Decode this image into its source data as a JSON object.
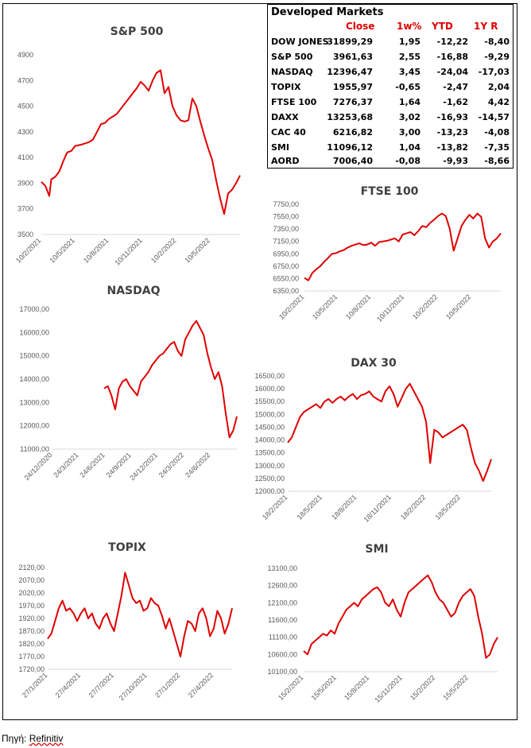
{
  "markets_table": {
    "title": "Developed Markets",
    "headers": {
      "close": "Close",
      "w1": "1w%",
      "ytd": "YTD",
      "y1": "1Y R"
    },
    "rows": [
      {
        "name": "DOW JONES",
        "close": "31899,29",
        "w1": "1,95",
        "ytd": "-12,22",
        "y1": "-8,40"
      },
      {
        "name": "S&P 500",
        "close": "3961,63",
        "w1": "2,55",
        "ytd": "-16,88",
        "y1": "-9,29"
      },
      {
        "name": "NASDAQ",
        "close": "12396,47",
        "w1": "3,45",
        "ytd": "-24,04",
        "y1": "-17,03"
      },
      {
        "name": "TOPIX",
        "close": "1955,97",
        "w1": "-0,65",
        "ytd": "-2,47",
        "y1": "2,04"
      },
      {
        "name": "FTSE 100",
        "close": "7276,37",
        "w1": "1,64",
        "ytd": "-1,62",
        "y1": "4,42"
      },
      {
        "name": "DAXX",
        "close": "13253,68",
        "w1": "3,02",
        "ytd": "-16,93",
        "y1": "-14,57"
      },
      {
        "name": "CAC 40",
        "close": "6216,82",
        "w1": "3,00",
        "ytd": "-13,23",
        "y1": "-4,08"
      },
      {
        "name": "SMI",
        "close": "11096,12",
        "w1": "1,04",
        "ytd": "-13,82",
        "y1": "-7,35"
      },
      {
        "name": "AORD",
        "close": "7006,40",
        "w1": "-0,08",
        "ytd": "-9,93",
        "y1": "-8,66"
      }
    ]
  },
  "source": {
    "label": "Πηγή:",
    "name": "Refinitiv"
  },
  "colors": {
    "line": "#e00000",
    "header_text": "#e00000",
    "axis_text": "#595959",
    "title_text": "#404040"
  },
  "chart_data": [
    {
      "id": "sp500",
      "type": "line",
      "title": "S&P 500",
      "ylim": [
        3500,
        4900
      ],
      "yticks": [
        "3500",
        "3700",
        "3900",
        "4100",
        "4300",
        "4500",
        "4700",
        "4900"
      ],
      "xticks": [
        "10/2/2021",
        "10/5/2021",
        "10/8/2021",
        "10/11/2021",
        "10/2/2022",
        "10/5/2022"
      ],
      "x_domain": [
        0,
        100
      ],
      "xtick_positions": [
        0,
        17,
        34,
        51,
        68,
        85
      ],
      "series": [
        {
          "x": [
            0,
            2,
            4,
            5,
            7,
            9,
            11,
            13,
            15,
            17,
            20,
            22,
            24,
            26,
            28,
            30,
            32,
            34,
            36,
            38,
            40,
            42,
            44,
            46,
            48,
            50,
            52,
            54,
            56,
            58,
            60,
            62,
            64,
            66,
            68,
            70,
            72,
            74,
            76,
            78,
            80,
            82,
            84,
            86,
            88,
            90,
            92,
            94,
            96,
            98,
            100
          ],
          "values": [
            3910,
            3880,
            3800,
            3930,
            3950,
            3990,
            4070,
            4140,
            4150,
            4190,
            4200,
            4210,
            4220,
            4240,
            4300,
            4360,
            4370,
            4400,
            4420,
            4440,
            4480,
            4520,
            4560,
            4600,
            4640,
            4690,
            4660,
            4620,
            4700,
            4760,
            4780,
            4600,
            4650,
            4500,
            4430,
            4390,
            4380,
            4390,
            4560,
            4500,
            4380,
            4270,
            4170,
            4080,
            3920,
            3780,
            3660,
            3820,
            3850,
            3900,
            3960
          ]
        }
      ]
    },
    {
      "id": "ftse",
      "type": "line",
      "title": "FTSE 100",
      "ylim": [
        6350,
        7750
      ],
      "yticks": [
        "6350,00",
        "6550,00",
        "6750,00",
        "6950,00",
        "7150,00",
        "7350,00",
        "7550,00",
        "7750,00"
      ],
      "xticks": [
        "10/2/2021",
        "10/5/2021",
        "10/8/2021",
        "10/11/2021",
        "10/2/2022",
        "10/5/2022"
      ],
      "x_domain": [
        0,
        100
      ],
      "xtick_positions": [
        0,
        17,
        34,
        51,
        68,
        85
      ],
      "series": [
        {
          "x": [
            0,
            2,
            4,
            6,
            8,
            10,
            12,
            14,
            16,
            18,
            20,
            22,
            24,
            26,
            28,
            30,
            32,
            34,
            36,
            38,
            40,
            42,
            44,
            46,
            48,
            50,
            52,
            54,
            56,
            58,
            60,
            62,
            64,
            66,
            68,
            70,
            72,
            74,
            76,
            78,
            80,
            82,
            84,
            86,
            88,
            90,
            92,
            94,
            96,
            98,
            100
          ],
          "values": [
            6560,
            6520,
            6640,
            6700,
            6750,
            6820,
            6880,
            6950,
            6960,
            6990,
            7010,
            7050,
            7080,
            7100,
            7120,
            7090,
            7100,
            7130,
            7080,
            7140,
            7150,
            7160,
            7180,
            7200,
            7150,
            7260,
            7280,
            7300,
            7250,
            7320,
            7400,
            7380,
            7450,
            7500,
            7560,
            7600,
            7560,
            7350,
            7000,
            7200,
            7400,
            7500,
            7580,
            7520,
            7600,
            7550,
            7200,
            7050,
            7150,
            7200,
            7280
          ]
        }
      ]
    },
    {
      "id": "nasdaq",
      "type": "line",
      "title": "NASDAQ",
      "ylim": [
        11000,
        17000
      ],
      "yticks": [
        "11000,00",
        "12000,00",
        "13000,00",
        "14000,00",
        "15000,00",
        "16000,00",
        "17000,00"
      ],
      "xticks": [
        "24/12/2020",
        "24/3/2021",
        "24/6/2021",
        "24/9/2021",
        "24/12/2021",
        "24/3/2022",
        "24/6/2022"
      ],
      "x_domain": [
        0,
        100
      ],
      "xtick_positions": [
        0,
        14.3,
        28.6,
        42.9,
        57.2,
        71.5,
        85.8
      ],
      "series": [
        {
          "x": [
            28,
            30,
            32,
            34,
            36,
            38,
            40,
            42,
            44,
            46,
            48,
            50,
            52,
            54,
            56,
            58,
            60,
            62,
            64,
            66,
            68,
            70,
            72,
            74,
            76,
            78,
            80,
            82,
            84,
            86,
            88,
            90,
            92,
            94,
            96,
            98,
            100
          ],
          "values": [
            13600,
            13700,
            13300,
            12700,
            13600,
            13900,
            14000,
            13700,
            13500,
            13300,
            13900,
            14100,
            14300,
            14600,
            14800,
            15000,
            15100,
            15300,
            15500,
            15600,
            15200,
            15000,
            15700,
            16000,
            16300,
            16500,
            16200,
            15900,
            15100,
            14500,
            14000,
            14300,
            13700,
            12500,
            11500,
            11800,
            12400
          ]
        }
      ]
    },
    {
      "id": "dax",
      "type": "line",
      "title": "DAX 30",
      "ylim": [
        12000,
        16500
      ],
      "yticks": [
        "12000,00",
        "12500,00",
        "13000,00",
        "13500,00",
        "14000,00",
        "14500,00",
        "15000,00",
        "15500,00",
        "16000,00",
        "16500,00"
      ],
      "xticks": [
        "18/2/2021",
        "18/5/2021",
        "18/8/2021",
        "18/11/2021",
        "18/2/2022",
        "18/5/2022"
      ],
      "x_domain": [
        0,
        100
      ],
      "xtick_positions": [
        0,
        17,
        34,
        51,
        68,
        85
      ],
      "series": [
        {
          "x": [
            0,
            2,
            4,
            6,
            8,
            10,
            12,
            14,
            16,
            18,
            20,
            22,
            24,
            26,
            28,
            30,
            32,
            34,
            36,
            38,
            40,
            42,
            44,
            46,
            48,
            50,
            52,
            54,
            56,
            58,
            60,
            62,
            64,
            66,
            68,
            70,
            72,
            74,
            76,
            78,
            80,
            82,
            84,
            86,
            88,
            90,
            92,
            94,
            96,
            98,
            100
          ],
          "values": [
            13900,
            14100,
            14500,
            14900,
            15100,
            15200,
            15300,
            15400,
            15250,
            15500,
            15600,
            15450,
            15600,
            15700,
            15550,
            15700,
            15800,
            15600,
            15750,
            15800,
            15900,
            15700,
            15600,
            15500,
            15900,
            16100,
            15800,
            15300,
            15650,
            16000,
            16200,
            15900,
            15600,
            15300,
            14700,
            13100,
            14400,
            14300,
            14100,
            14200,
            14300,
            14400,
            14500,
            14600,
            14400,
            13700,
            13100,
            12800,
            12400,
            12800,
            13250
          ]
        }
      ]
    },
    {
      "id": "topix",
      "type": "line",
      "title": "TOPIX",
      "ylim": [
        1720,
        2120
      ],
      "yticks": [
        "1720,00",
        "1770,00",
        "1820,00",
        "1870,00",
        "1920,00",
        "1970,00",
        "2020,00",
        "2070,00",
        "2120,00"
      ],
      "xticks": [
        "27/1/2021",
        "27/4/2021",
        "27/7/2021",
        "27/10/2021",
        "27/1/2022",
        "27/4/2022"
      ],
      "x_domain": [
        0,
        100
      ],
      "xtick_positions": [
        0,
        18,
        36,
        54,
        72,
        90
      ],
      "series": [
        {
          "x": [
            0,
            2,
            4,
            6,
            8,
            10,
            12,
            14,
            16,
            18,
            20,
            22,
            24,
            26,
            28,
            30,
            32,
            34,
            36,
            38,
            40,
            42,
            44,
            46,
            48,
            50,
            52,
            54,
            56,
            58,
            60,
            62,
            64,
            66,
            68,
            70,
            72,
            74,
            76,
            78,
            80,
            82,
            84,
            86,
            88,
            90,
            92,
            94,
            96,
            98,
            100
          ],
          "values": [
            1840,
            1860,
            1910,
            1960,
            1990,
            1950,
            1960,
            1940,
            1910,
            1940,
            1960,
            1920,
            1940,
            1900,
            1880,
            1920,
            1940,
            1900,
            1870,
            1940,
            2010,
            2100,
            2050,
            2000,
            1980,
            1990,
            1950,
            1960,
            2000,
            1980,
            1970,
            1930,
            1880,
            1920,
            1870,
            1820,
            1770,
            1850,
            1910,
            1900,
            1870,
            1940,
            1960,
            1920,
            1850,
            1880,
            1950,
            1920,
            1860,
            1900,
            1960
          ]
        }
      ]
    },
    {
      "id": "smi",
      "type": "line",
      "title": "SMI",
      "ylim": [
        10100,
        13100
      ],
      "yticks": [
        "10100,00",
        "10600,00",
        "11100,00",
        "11600,00",
        "12100,00",
        "12600,00",
        "13100,00"
      ],
      "xticks": [
        "15/2/2021",
        "15/5/2021",
        "15/8/2021",
        "15/11/2021",
        "15/2/2022",
        "15/5/2022"
      ],
      "x_domain": [
        0,
        100
      ],
      "xtick_positions": [
        0,
        17,
        34,
        51,
        68,
        85
      ],
      "series": [
        {
          "x": [
            0,
            2,
            4,
            6,
            8,
            10,
            12,
            14,
            16,
            18,
            20,
            22,
            24,
            26,
            28,
            30,
            32,
            34,
            36,
            38,
            40,
            42,
            44,
            46,
            48,
            50,
            52,
            54,
            56,
            58,
            60,
            62,
            64,
            66,
            68,
            70,
            72,
            74,
            76,
            78,
            80,
            82,
            84,
            86,
            88,
            90,
            92,
            94,
            96,
            98,
            100
          ],
          "values": [
            10700,
            10600,
            10900,
            11000,
            11100,
            11200,
            11150,
            11300,
            11200,
            11500,
            11700,
            11900,
            12000,
            12100,
            12000,
            12200,
            12300,
            12400,
            12500,
            12550,
            12400,
            12100,
            12000,
            12200,
            11900,
            11700,
            12100,
            12400,
            12500,
            12600,
            12700,
            12800,
            12900,
            12700,
            12400,
            12200,
            12100,
            11900,
            11700,
            11800,
            12100,
            12300,
            12400,
            12500,
            12300,
            11700,
            11200,
            10500,
            10600,
            10900,
            11100
          ]
        }
      ]
    }
  ]
}
